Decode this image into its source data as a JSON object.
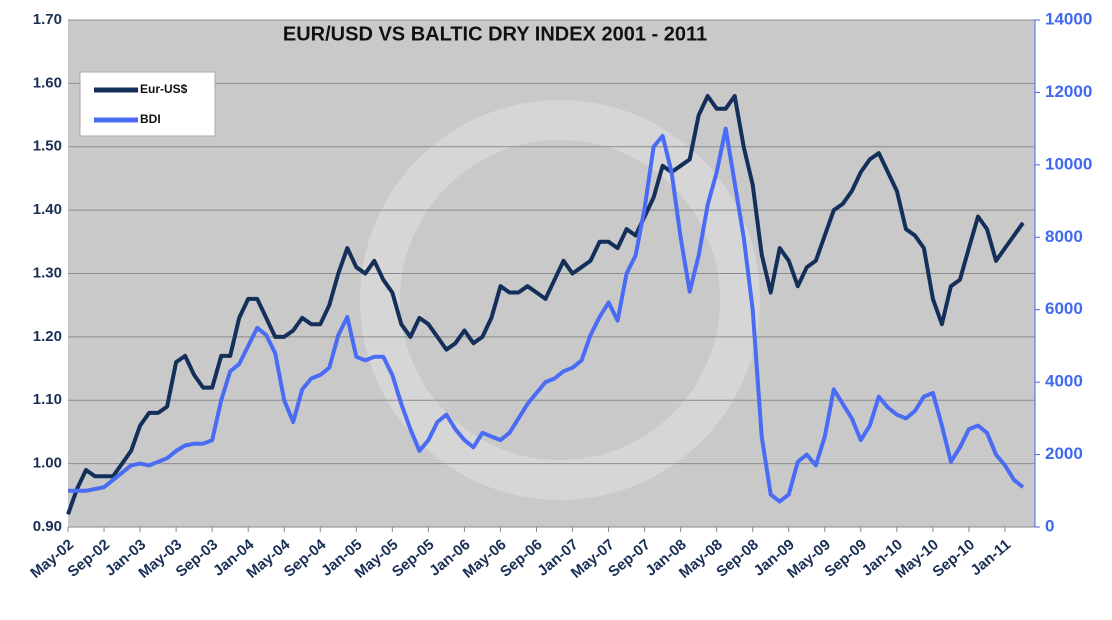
{
  "chart_data": {
    "type": "line",
    "title": "EUR/USD VS BALTIC DRY INDEX 2001 - 2011",
    "categories": [
      "May-02",
      null,
      null,
      null,
      "Sep-02",
      null,
      null,
      null,
      "Jan-03",
      null,
      null,
      null,
      "May-03",
      null,
      null,
      null,
      "Sep-03",
      null,
      null,
      null,
      "Jan-04",
      null,
      null,
      null,
      "May-04",
      null,
      null,
      null,
      "Sep-04",
      null,
      null,
      null,
      "Jan-05",
      null,
      null,
      null,
      "May-05",
      null,
      null,
      null,
      "Sep-05",
      null,
      null,
      null,
      "Jan-06",
      null,
      null,
      null,
      "May-06",
      null,
      null,
      null,
      "Sep-06",
      null,
      null,
      null,
      "Jan-07",
      null,
      null,
      null,
      "May-07",
      null,
      null,
      null,
      "Sep-07",
      null,
      null,
      null,
      "Jan-08",
      null,
      null,
      null,
      "May-08",
      null,
      null,
      null,
      "Sep-08",
      null,
      null,
      null,
      "Jan-09",
      null,
      null,
      null,
      "May-09",
      null,
      null,
      null,
      "Sep-09",
      null,
      null,
      null,
      "Jan-10",
      null,
      null,
      null,
      "May-10",
      null,
      null,
      null,
      "Sep-10",
      null,
      null,
      null,
      "Jan-11",
      null,
      null
    ],
    "series": [
      {
        "name": "Eur-US$",
        "color": "#14305a",
        "axis": "y",
        "values": [
          0.92,
          0.96,
          0.99,
          0.98,
          0.98,
          0.98,
          1.0,
          1.02,
          1.06,
          1.08,
          1.08,
          1.09,
          1.16,
          1.17,
          1.14,
          1.12,
          1.12,
          1.17,
          1.17,
          1.23,
          1.26,
          1.26,
          1.23,
          1.2,
          1.2,
          1.21,
          1.23,
          1.22,
          1.22,
          1.25,
          1.3,
          1.34,
          1.31,
          1.3,
          1.32,
          1.29,
          1.27,
          1.22,
          1.2,
          1.23,
          1.22,
          1.2,
          1.18,
          1.19,
          1.21,
          1.19,
          1.2,
          1.23,
          1.28,
          1.27,
          1.27,
          1.28,
          1.27,
          1.26,
          1.29,
          1.32,
          1.3,
          1.31,
          1.32,
          1.35,
          1.35,
          1.34,
          1.37,
          1.36,
          1.39,
          1.42,
          1.47,
          1.46,
          1.47,
          1.48,
          1.55,
          1.58,
          1.56,
          1.56,
          1.58,
          1.5,
          1.44,
          1.33,
          1.27,
          1.34,
          1.32,
          1.28,
          1.31,
          1.32,
          1.36,
          1.4,
          1.41,
          1.43,
          1.46,
          1.48,
          1.49,
          1.46,
          1.43,
          1.37,
          1.36,
          1.34,
          1.26,
          1.22,
          1.28,
          1.29,
          1.34,
          1.39,
          1.37,
          1.32,
          1.34,
          1.36,
          1.38
        ]
      },
      {
        "name": "BDI",
        "color": "#4a6cf5",
        "axis": "y2",
        "values": [
          1000,
          1000,
          1000,
          1050,
          1100,
          1300,
          1500,
          1700,
          1750,
          1700,
          1800,
          1900,
          2100,
          2250,
          2300,
          2300,
          2400,
          3500,
          4300,
          4500,
          5000,
          5500,
          5300,
          4800,
          3500,
          2900,
          3800,
          4100,
          4200,
          4400,
          5300,
          5800,
          4700,
          4600,
          4700,
          4700,
          4200,
          3400,
          2700,
          2100,
          2400,
          2900,
          3100,
          2700,
          2400,
          2200,
          2600,
          2500,
          2400,
          2600,
          3000,
          3400,
          3700,
          4000,
          4100,
          4300,
          4400,
          4600,
          5300,
          5800,
          6200,
          5700,
          7000,
          7500,
          8800,
          10500,
          10800,
          9800,
          8000,
          6500,
          7500,
          8900,
          9800,
          11000,
          9500,
          8000,
          6000,
          2500,
          900,
          700,
          900,
          1800,
          2000,
          1700,
          2500,
          3800,
          3400,
          3000,
          2400,
          2800,
          3600,
          3300,
          3100,
          3000,
          3200,
          3600,
          3700,
          2800,
          1800,
          2200,
          2700,
          2800,
          2600,
          2000,
          1700,
          1300,
          1100
        ]
      }
    ],
    "ylim": [
      0.9,
      1.7
    ],
    "yticks": [
      {
        "value": 0.9,
        "label": "0.90"
      },
      {
        "value": 1.0,
        "label": "1.00"
      },
      {
        "value": 1.1,
        "label": "1.10"
      },
      {
        "value": 1.2,
        "label": "1.20"
      },
      {
        "value": 1.3,
        "label": "1.30"
      },
      {
        "value": 1.4,
        "label": "1.40"
      },
      {
        "value": 1.5,
        "label": "1.50"
      },
      {
        "value": 1.6,
        "label": "1.60"
      },
      {
        "value": 1.7,
        "label": "1.70"
      }
    ],
    "y2lim": [
      0,
      14000
    ],
    "y2ticks": [
      0,
      2000,
      4000,
      6000,
      8000,
      10000,
      12000,
      14000
    ],
    "grid": true,
    "legend": "upper left"
  }
}
